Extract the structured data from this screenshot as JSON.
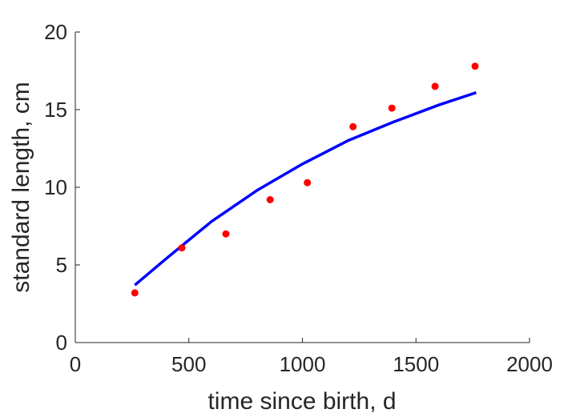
{
  "chart_data": {
    "type": "scatter",
    "title": "",
    "xlabel": "time since birth, d",
    "ylabel": "standard length, cm",
    "xlim": [
      0,
      2000
    ],
    "ylim": [
      0,
      20
    ],
    "xticks": [
      0,
      500,
      1000,
      1500,
      2000
    ],
    "yticks": [
      0,
      5,
      10,
      15,
      20
    ],
    "grid": false,
    "series": [
      {
        "type": "scatter",
        "color": "#ff0000",
        "x": [
          262,
          469,
          663,
          858,
          1022,
          1223,
          1394,
          1584,
          1760
        ],
        "y": [
          3.2,
          6.1,
          7.0,
          9.2,
          10.3,
          13.9,
          15.1,
          16.5,
          17.8
        ]
      },
      {
        "type": "line",
        "color": "#0000ff",
        "x": [
          262,
          400,
          600,
          800,
          1000,
          1200,
          1400,
          1600,
          1765
        ],
        "y": [
          3.7,
          5.4,
          7.8,
          9.8,
          11.5,
          13.0,
          14.2,
          15.3,
          16.1
        ]
      }
    ]
  }
}
